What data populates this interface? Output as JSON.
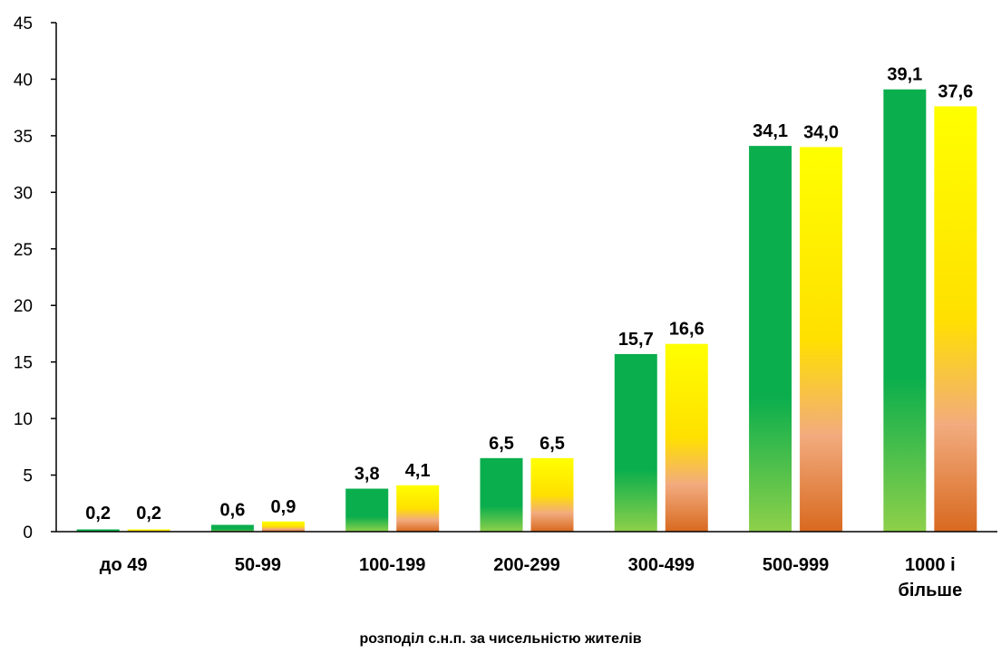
{
  "chart_data": {
    "type": "bar",
    "categories": [
      "до 49",
      "50-99",
      "100-199",
      "200-299",
      "300-499",
      "500-999",
      "1000 і більше"
    ],
    "category_lines": [
      [
        "до 49"
      ],
      [
        "50-99"
      ],
      [
        "100-199"
      ],
      [
        "200-299"
      ],
      [
        "300-499"
      ],
      [
        "500-999"
      ],
      [
        "1000 і",
        "більше"
      ]
    ],
    "series": [
      {
        "values": [
          0.2,
          0.6,
          3.8,
          6.5,
          15.7,
          34.1,
          39.1
        ],
        "labels": [
          "0,2",
          "0,6",
          "3,8",
          "6,5",
          "15,7",
          "34,1",
          "39,1"
        ],
        "color_top": "#0aae4d",
        "color_bottom": "#8ed04a"
      },
      {
        "values": [
          0.2,
          0.9,
          4.1,
          6.5,
          16.6,
          34.0,
          37.6
        ],
        "labels": [
          "0,2",
          "0,9",
          "4,1",
          "6,5",
          "16,6",
          "34,0",
          "37,6"
        ],
        "color_top": "#ffff00",
        "color_bottom": "#d8691f"
      }
    ],
    "y_ticks": [
      0,
      5,
      10,
      15,
      20,
      25,
      30,
      35,
      40,
      45
    ],
    "ylim": [
      0,
      45
    ],
    "xlabel": "розподіл с.н.п.  за чисельністю  жителів",
    "ylabel": "",
    "title": "",
    "grid": false,
    "legend": "none"
  }
}
